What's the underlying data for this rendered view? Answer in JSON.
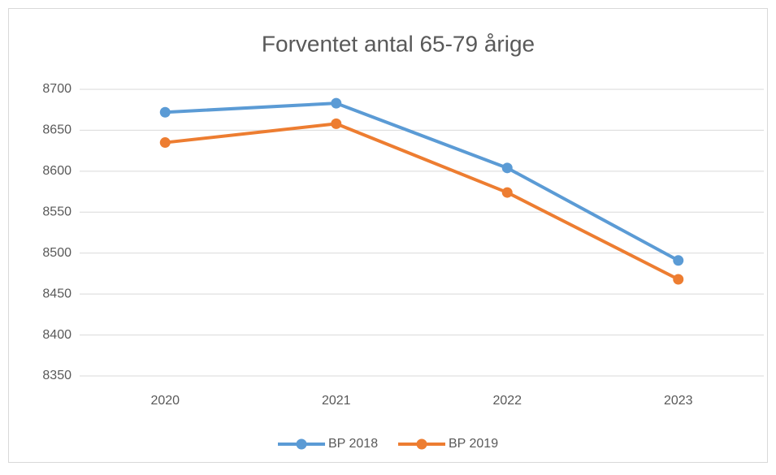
{
  "chart_data": {
    "type": "line",
    "title": "Forventet antal 65-79 årige",
    "categories": [
      "2020",
      "2021",
      "2022",
      "2023"
    ],
    "series": [
      {
        "name": "BP 2018",
        "color": "#5b9bd5",
        "values": [
          8672,
          8683,
          8604,
          8491
        ]
      },
      {
        "name": "BP 2019",
        "color": "#ed7d31",
        "values": [
          8635,
          8658,
          8574,
          8468
        ]
      }
    ],
    "ylim": [
      8350,
      8700
    ],
    "yticks": [
      8350,
      8400,
      8450,
      8500,
      8550,
      8600,
      8650,
      8700
    ],
    "grid": true,
    "legend": "bottom"
  }
}
